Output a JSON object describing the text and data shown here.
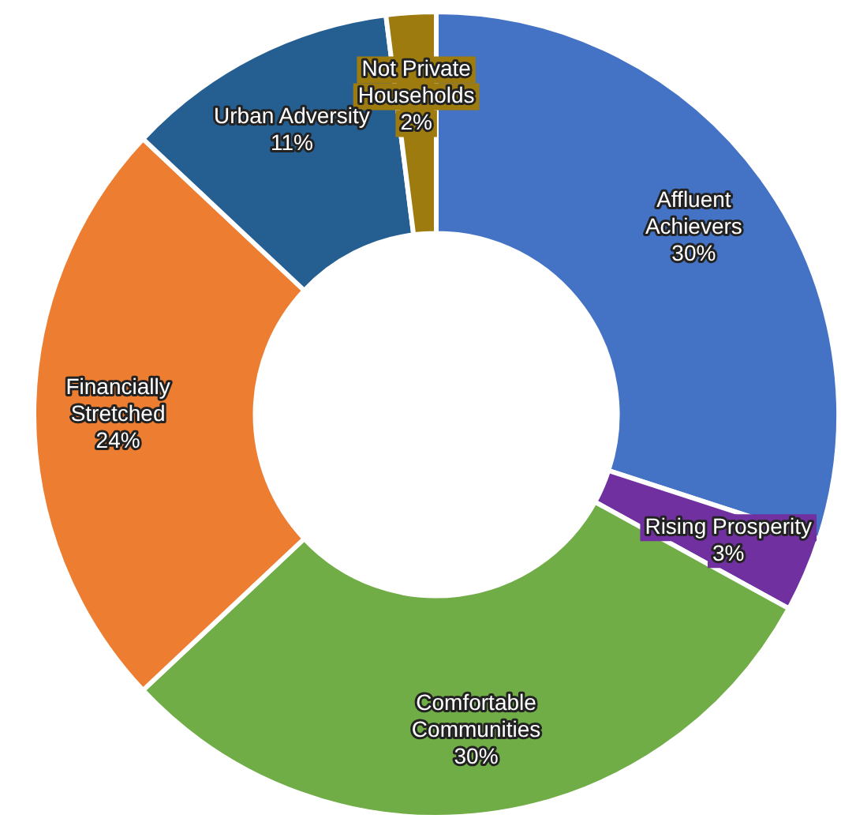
{
  "chart_data": {
    "type": "donut",
    "categories": [
      "Affluent Achievers",
      "Rising Prosperity",
      "Comfortable Communities",
      "Financially Stretched",
      "Urban Adversity",
      "Not Private Households"
    ],
    "values": [
      30,
      3,
      30,
      24,
      11,
      2
    ],
    "colors": [
      "#4472c4",
      "#7030a0",
      "#70ad47",
      "#ed7d31",
      "#255e91",
      "#9e7b0e"
    ],
    "value_labels": [
      "30%",
      "3%",
      "30%",
      "24%",
      "11%",
      "2%"
    ],
    "legend": false
  }
}
